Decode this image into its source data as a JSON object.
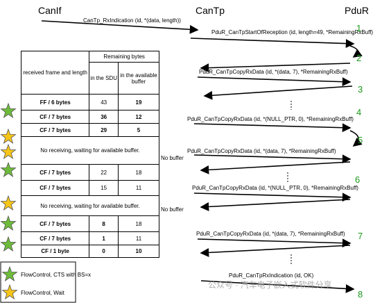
{
  "lifelines": [
    "CanIf",
    "CanTp",
    "PduR"
  ],
  "messages": [
    "CanTp_RxIndication (id, *(data, length))",
    "PduR_CanTpStartOfReception (id, length=49, *RemainingRxBuff)",
    "PduR_CanTpCopyRxData (id, *(data, 7), *RemainingRxBuff)",
    "PduR_CanTpCopyRxData (id, *(NULL_PTR, 0), *RemainingRxBuff)",
    "PduR_CanTpCopyRxData (id, *(data, 7), *RemainingRxBuff)",
    "PduR_CanTpCopyRxData (id, *(NULL_PTR, 0), *RemainingRxBuff)",
    "PduR_CanTpCopyRxData (id, *(data, 7), *RemainingRxBuff)",
    "PduR_CanTpRxIndication (id, OK)"
  ],
  "steps": [
    "1",
    "2",
    "3",
    "4",
    "5",
    "6",
    "7",
    "8"
  ],
  "notes": [
    "No buffer",
    "No buffer"
  ],
  "table": {
    "header": {
      "frame": "received frame and length",
      "remaining": "Remaining bytes",
      "sdu": "in the SDU",
      "buffer": "in the available buffer"
    },
    "rows": [
      [
        "FF / 6 bytes",
        43,
        19
      ],
      [
        "CF / 7 bytes",
        36,
        12
      ],
      [
        "CF / 7 bytes",
        29,
        5
      ],
      "No receiving, waiting for available buffer.",
      [
        "CF / 7 bytes",
        22,
        18
      ],
      [
        "CF / 7 bytes",
        15,
        11
      ],
      "No receiving, waiting for available buffer.",
      [
        "CF / 7 bytes",
        8,
        18
      ],
      [
        "CF / 7 bytes",
        1,
        11
      ],
      [
        "CF / 1 byte",
        0,
        10
      ]
    ]
  },
  "legend": [
    "FlowControl, CTS with BS=x",
    "FlowControl, Wait"
  ],
  "watermark": "公众号 · 汽车电子嵌入式软件分享"
}
